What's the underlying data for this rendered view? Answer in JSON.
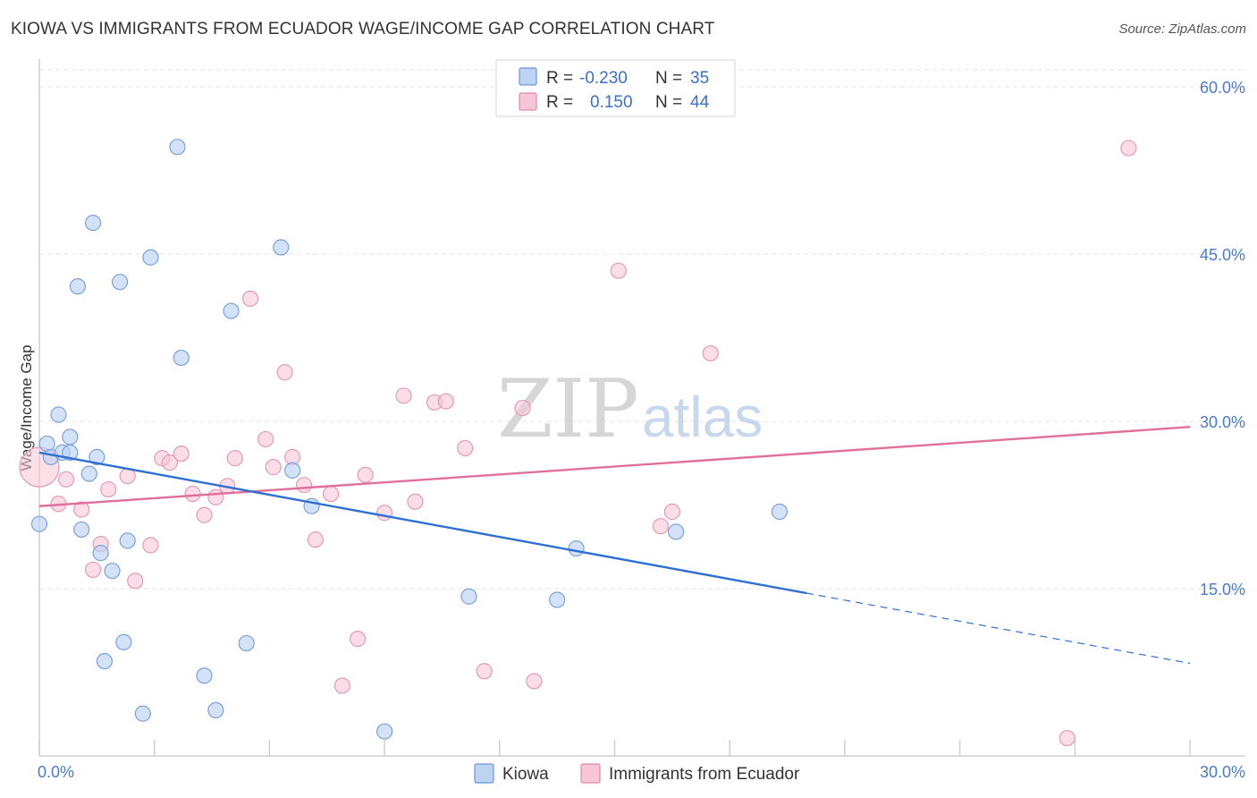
{
  "title": "KIOWA VS IMMIGRANTS FROM ECUADOR WAGE/INCOME GAP CORRELATION CHART",
  "source": "Source: ZipAtlas.com",
  "watermark": {
    "zip": "ZIP",
    "atlas": "atlas"
  },
  "colors": {
    "blue": "#4a7bd0",
    "blue_fill": "#bcd3f2",
    "blue_line": "#2f6fd4",
    "pink": "#e07aa0",
    "pink_fill": "#f7c6d6",
    "pink_line": "#e0709a"
  },
  "legend": {
    "rows": [
      {
        "r_label": "R =",
        "r_value": "-0.230",
        "n_label": "N =",
        "n_value": "35"
      },
      {
        "r_label": "R =",
        "r_value": "0.150",
        "n_label": "N =",
        "n_value": "44"
      }
    ]
  },
  "chart_data": {
    "type": "scatter",
    "title": "KIOWA VS IMMIGRANTS FROM ECUADOR WAGE/INCOME GAP CORRELATION CHART",
    "xlabel": "",
    "ylabel": "Wage/Income Gap",
    "xlim": [
      0,
      30
    ],
    "ylim": [
      0,
      60
    ],
    "x_tick_labels": [
      "0.0%",
      "30.0%"
    ],
    "y_ticks": [
      15,
      30,
      45,
      60
    ],
    "y_tick_labels": [
      "15.0%",
      "30.0%",
      "45.0%",
      "60.0%"
    ],
    "series": [
      {
        "name": "Kiowa",
        "points": [
          [
            0.0,
            20.8
          ],
          [
            0.2,
            28.0
          ],
          [
            0.3,
            26.8
          ],
          [
            0.5,
            30.6
          ],
          [
            0.6,
            27.2
          ],
          [
            0.8,
            27.2
          ],
          [
            0.8,
            28.6
          ],
          [
            1.0,
            42.1
          ],
          [
            1.1,
            20.3
          ],
          [
            1.3,
            25.3
          ],
          [
            1.4,
            47.8
          ],
          [
            1.5,
            26.8
          ],
          [
            1.6,
            18.2
          ],
          [
            1.7,
            8.5
          ],
          [
            1.9,
            16.6
          ],
          [
            2.1,
            42.5
          ],
          [
            2.2,
            10.2
          ],
          [
            2.3,
            19.3
          ],
          [
            2.7,
            3.8
          ],
          [
            2.9,
            44.7
          ],
          [
            3.6,
            54.6
          ],
          [
            3.7,
            35.7
          ],
          [
            4.3,
            7.2
          ],
          [
            4.6,
            4.1
          ],
          [
            5.0,
            39.9
          ],
          [
            5.4,
            10.1
          ],
          [
            6.3,
            45.6
          ],
          [
            6.6,
            25.6
          ],
          [
            7.1,
            22.4
          ],
          [
            9.0,
            2.2
          ],
          [
            11.2,
            14.3
          ],
          [
            13.5,
            14.0
          ],
          [
            14.0,
            18.6
          ],
          [
            16.6,
            20.1
          ],
          [
            19.3,
            21.9
          ]
        ],
        "trend": {
          "x": [
            0.0,
            20.0
          ],
          "y": [
            27.2,
            14.6
          ]
        },
        "trend_dashed": {
          "x": [
            20.0,
            30.0
          ],
          "y": [
            14.6,
            8.3
          ]
        }
      },
      {
        "name": "Immigrants from Ecuador",
        "points": [
          [
            0.0,
            25.9
          ],
          [
            0.5,
            22.6
          ],
          [
            0.7,
            24.8
          ],
          [
            1.1,
            22.1
          ],
          [
            1.4,
            16.7
          ],
          [
            1.6,
            19.0
          ],
          [
            1.8,
            23.9
          ],
          [
            2.3,
            25.1
          ],
          [
            2.5,
            15.7
          ],
          [
            2.9,
            18.9
          ],
          [
            3.2,
            26.7
          ],
          [
            3.4,
            26.3
          ],
          [
            3.7,
            27.1
          ],
          [
            4.0,
            23.5
          ],
          [
            4.3,
            21.6
          ],
          [
            4.6,
            23.2
          ],
          [
            4.9,
            24.2
          ],
          [
            5.1,
            26.7
          ],
          [
            5.5,
            41.0
          ],
          [
            5.9,
            28.4
          ],
          [
            6.1,
            25.9
          ],
          [
            6.4,
            34.4
          ],
          [
            6.6,
            26.8
          ],
          [
            6.9,
            24.3
          ],
          [
            7.2,
            19.4
          ],
          [
            7.6,
            23.5
          ],
          [
            7.9,
            6.3
          ],
          [
            8.3,
            10.5
          ],
          [
            8.5,
            25.2
          ],
          [
            9.0,
            21.8
          ],
          [
            9.5,
            32.3
          ],
          [
            9.8,
            22.8
          ],
          [
            10.3,
            31.7
          ],
          [
            10.6,
            31.8
          ],
          [
            11.1,
            27.6
          ],
          [
            11.6,
            7.6
          ],
          [
            12.9,
            6.7
          ],
          [
            15.1,
            43.5
          ],
          [
            16.2,
            20.6
          ],
          [
            16.5,
            21.9
          ],
          [
            17.5,
            36.1
          ],
          [
            26.8,
            1.6
          ],
          [
            28.4,
            54.5
          ],
          [
            12.6,
            31.2
          ]
        ],
        "trend": {
          "x": [
            0.0,
            30.0
          ],
          "y": [
            22.4,
            29.5
          ]
        }
      }
    ],
    "legend_position": "top-center",
    "bottom_legend": [
      "Kiowa",
      "Immigrants from Ecuador"
    ],
    "grid": "horizontal dashed"
  }
}
